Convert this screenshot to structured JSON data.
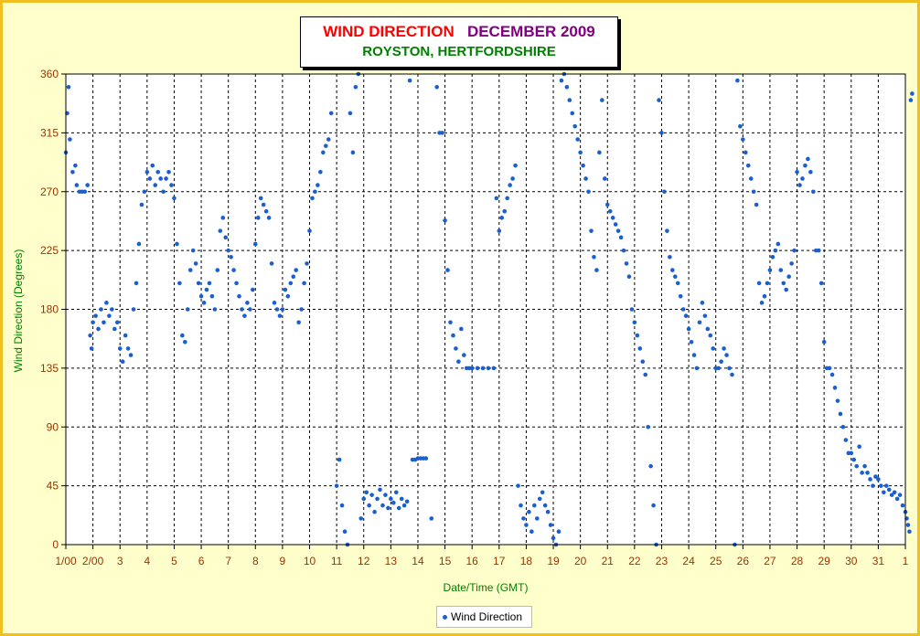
{
  "title": {
    "part1": "WIND DIRECTION",
    "part2": "DECEMBER 2009",
    "subtitle": "ROYSTON, HERTFORDSHIRE"
  },
  "colors": {
    "part1": "#ff0000",
    "part2": "#800080",
    "subtitle": "#008000",
    "series": "#1a5fd0",
    "axis_text": "#993300",
    "ylabel": "#008000"
  },
  "chart_data": {
    "type": "scatter",
    "xlabel": "Date/Time (GMT)",
    "ylabel": "Wind Direction (Degrees)",
    "ylim": [
      0,
      360
    ],
    "xlim": [
      0,
      31
    ],
    "yticks": [
      0,
      45,
      90,
      135,
      180,
      225,
      270,
      315,
      360
    ],
    "xtick_labels": [
      "1/00",
      "2/00",
      "3",
      "4",
      "5",
      "6",
      "7",
      "8",
      "9",
      "10",
      "11",
      "12",
      "13",
      "14",
      "15",
      "16",
      "17",
      "18",
      "19",
      "20",
      "21",
      "22",
      "23",
      "24",
      "25",
      "26",
      "27",
      "28",
      "29",
      "30",
      "31",
      "1"
    ],
    "grid": true,
    "legend": "bottom",
    "series": [
      {
        "name": "Wind Direction",
        "points": [
          [
            0.0,
            300
          ],
          [
            0.05,
            330
          ],
          [
            0.1,
            350
          ],
          [
            0.15,
            310
          ],
          [
            0.25,
            285
          ],
          [
            0.35,
            290
          ],
          [
            0.4,
            275
          ],
          [
            0.5,
            270
          ],
          [
            0.6,
            270
          ],
          [
            0.7,
            270
          ],
          [
            0.8,
            275
          ],
          [
            0.9,
            160
          ],
          [
            0.95,
            150
          ],
          [
            1.0,
            170
          ],
          [
            1.1,
            175
          ],
          [
            1.2,
            165
          ],
          [
            1.3,
            180
          ],
          [
            1.4,
            170
          ],
          [
            1.5,
            185
          ],
          [
            1.6,
            175
          ],
          [
            1.7,
            180
          ],
          [
            1.8,
            165
          ],
          [
            1.9,
            170
          ],
          [
            2.0,
            150
          ],
          [
            2.1,
            140
          ],
          [
            2.2,
            160
          ],
          [
            2.3,
            150
          ],
          [
            2.4,
            145
          ],
          [
            2.5,
            180
          ],
          [
            2.6,
            200
          ],
          [
            2.7,
            230
          ],
          [
            2.8,
            260
          ],
          [
            2.9,
            270
          ],
          [
            3.0,
            285
          ],
          [
            3.1,
            280
          ],
          [
            3.2,
            290
          ],
          [
            3.3,
            275
          ],
          [
            3.4,
            285
          ],
          [
            3.5,
            280
          ],
          [
            3.6,
            270
          ],
          [
            3.7,
            280
          ],
          [
            3.8,
            285
          ],
          [
            3.9,
            275
          ],
          [
            4.0,
            265
          ],
          [
            4.1,
            230
          ],
          [
            4.2,
            200
          ],
          [
            4.3,
            160
          ],
          [
            4.4,
            155
          ],
          [
            4.5,
            180
          ],
          [
            4.6,
            210
          ],
          [
            4.7,
            225
          ],
          [
            4.8,
            215
          ],
          [
            4.9,
            200
          ],
          [
            5.0,
            190
          ],
          [
            5.1,
            185
          ],
          [
            5.2,
            195
          ],
          [
            5.3,
            200
          ],
          [
            5.4,
            190
          ],
          [
            5.5,
            180
          ],
          [
            5.6,
            210
          ],
          [
            5.7,
            240
          ],
          [
            5.8,
            250
          ],
          [
            5.9,
            235
          ],
          [
            6.0,
            225
          ],
          [
            6.1,
            220
          ],
          [
            6.2,
            210
          ],
          [
            6.3,
            200
          ],
          [
            6.4,
            190
          ],
          [
            6.5,
            180
          ],
          [
            6.6,
            175
          ],
          [
            6.7,
            185
          ],
          [
            6.8,
            180
          ],
          [
            6.9,
            195
          ],
          [
            7.0,
            230
          ],
          [
            7.1,
            250
          ],
          [
            7.2,
            265
          ],
          [
            7.3,
            260
          ],
          [
            7.4,
            255
          ],
          [
            7.5,
            250
          ],
          [
            7.6,
            215
          ],
          [
            7.7,
            185
          ],
          [
            7.8,
            180
          ],
          [
            7.9,
            175
          ],
          [
            8.0,
            180
          ],
          [
            8.1,
            195
          ],
          [
            8.2,
            190
          ],
          [
            8.3,
            200
          ],
          [
            8.4,
            205
          ],
          [
            8.5,
            210
          ],
          [
            8.6,
            170
          ],
          [
            8.7,
            180
          ],
          [
            8.8,
            200
          ],
          [
            8.9,
            215
          ],
          [
            9.0,
            240
          ],
          [
            9.1,
            265
          ],
          [
            9.2,
            270
          ],
          [
            9.3,
            275
          ],
          [
            9.4,
            285
          ],
          [
            9.5,
            300
          ],
          [
            9.6,
            305
          ],
          [
            9.7,
            310
          ],
          [
            9.8,
            330
          ],
          [
            10.0,
            45
          ],
          [
            10.1,
            65
          ],
          [
            10.2,
            30
          ],
          [
            10.3,
            10
          ],
          [
            10.4,
            0
          ],
          [
            10.5,
            330
          ],
          [
            10.6,
            300
          ],
          [
            10.7,
            350
          ],
          [
            10.8,
            360
          ],
          [
            10.9,
            20
          ],
          [
            11.0,
            35
          ],
          [
            11.1,
            40
          ],
          [
            11.2,
            30
          ],
          [
            11.3,
            38
          ],
          [
            11.4,
            25
          ],
          [
            11.5,
            35
          ],
          [
            11.6,
            42
          ],
          [
            11.7,
            30
          ],
          [
            11.8,
            38
          ],
          [
            11.9,
            28
          ],
          [
            12.0,
            35
          ],
          [
            12.1,
            32
          ],
          [
            12.2,
            40
          ],
          [
            12.3,
            28
          ],
          [
            12.4,
            35
          ],
          [
            12.5,
            30
          ],
          [
            12.6,
            33
          ],
          [
            12.7,
            355
          ],
          [
            12.8,
            65
          ],
          [
            12.9,
            65
          ],
          [
            13.0,
            66
          ],
          [
            13.1,
            66
          ],
          [
            13.2,
            66
          ],
          [
            13.3,
            66
          ],
          [
            13.5,
            20
          ],
          [
            13.7,
            350
          ],
          [
            13.8,
            315
          ],
          [
            13.9,
            315
          ],
          [
            14.0,
            248
          ],
          [
            14.1,
            210
          ],
          [
            14.2,
            170
          ],
          [
            14.3,
            160
          ],
          [
            14.4,
            150
          ],
          [
            14.5,
            140
          ],
          [
            14.6,
            165
          ],
          [
            14.7,
            145
          ],
          [
            14.8,
            135
          ],
          [
            14.9,
            135
          ],
          [
            15.0,
            135
          ],
          [
            15.2,
            135
          ],
          [
            15.4,
            135
          ],
          [
            15.6,
            135
          ],
          [
            15.8,
            135
          ],
          [
            15.9,
            265
          ],
          [
            16.0,
            240
          ],
          [
            16.1,
            250
          ],
          [
            16.2,
            255
          ],
          [
            16.3,
            265
          ],
          [
            16.4,
            275
          ],
          [
            16.5,
            280
          ],
          [
            16.6,
            290
          ],
          [
            16.7,
            45
          ],
          [
            16.8,
            30
          ],
          [
            16.9,
            20
          ],
          [
            17.0,
            15
          ],
          [
            17.1,
            25
          ],
          [
            17.2,
            10
          ],
          [
            17.3,
            30
          ],
          [
            17.4,
            20
          ],
          [
            17.5,
            35
          ],
          [
            17.6,
            40
          ],
          [
            17.7,
            30
          ],
          [
            17.8,
            25
          ],
          [
            17.9,
            15
          ],
          [
            18.0,
            5
          ],
          [
            18.1,
            0
          ],
          [
            18.2,
            10
          ],
          [
            18.3,
            355
          ],
          [
            18.4,
            360
          ],
          [
            18.5,
            350
          ],
          [
            18.6,
            340
          ],
          [
            18.7,
            330
          ],
          [
            18.8,
            320
          ],
          [
            18.9,
            310
          ],
          [
            19.0,
            300
          ],
          [
            19.1,
            290
          ],
          [
            19.2,
            280
          ],
          [
            19.3,
            270
          ],
          [
            19.4,
            240
          ],
          [
            19.5,
            220
          ],
          [
            19.6,
            210
          ],
          [
            19.7,
            300
          ],
          [
            19.8,
            340
          ],
          [
            19.9,
            280
          ],
          [
            20.0,
            260
          ],
          [
            20.1,
            255
          ],
          [
            20.2,
            250
          ],
          [
            20.3,
            245
          ],
          [
            20.4,
            240
          ],
          [
            20.5,
            235
          ],
          [
            20.6,
            225
          ],
          [
            20.7,
            215
          ],
          [
            20.8,
            205
          ],
          [
            20.9,
            180
          ],
          [
            21.0,
            170
          ],
          [
            21.1,
            160
          ],
          [
            21.2,
            150
          ],
          [
            21.3,
            140
          ],
          [
            21.4,
            130
          ],
          [
            21.5,
            90
          ],
          [
            21.6,
            60
          ],
          [
            21.7,
            30
          ],
          [
            21.8,
            0
          ],
          [
            21.9,
            340
          ],
          [
            22.0,
            315
          ],
          [
            22.1,
            270
          ],
          [
            22.2,
            240
          ],
          [
            22.3,
            220
          ],
          [
            22.4,
            210
          ],
          [
            22.5,
            205
          ],
          [
            22.6,
            200
          ],
          [
            22.7,
            190
          ],
          [
            22.8,
            180
          ],
          [
            22.9,
            175
          ],
          [
            23.0,
            165
          ],
          [
            23.1,
            155
          ],
          [
            23.2,
            145
          ],
          [
            23.3,
            135
          ],
          [
            23.4,
            170
          ],
          [
            23.5,
            185
          ],
          [
            23.6,
            175
          ],
          [
            23.7,
            165
          ],
          [
            23.8,
            160
          ],
          [
            23.9,
            150
          ],
          [
            24.0,
            135
          ],
          [
            24.1,
            135
          ],
          [
            24.2,
            140
          ],
          [
            24.3,
            150
          ],
          [
            24.4,
            145
          ],
          [
            24.5,
            135
          ],
          [
            24.6,
            130
          ],
          [
            24.7,
            0
          ],
          [
            24.8,
            355
          ],
          [
            24.9,
            320
          ],
          [
            25.0,
            310
          ],
          [
            25.1,
            300
          ],
          [
            25.2,
            290
          ],
          [
            25.3,
            280
          ],
          [
            25.4,
            270
          ],
          [
            25.5,
            260
          ],
          [
            25.6,
            200
          ],
          [
            25.7,
            185
          ],
          [
            25.8,
            190
          ],
          [
            25.9,
            200
          ],
          [
            26.0,
            210
          ],
          [
            26.1,
            220
          ],
          [
            26.2,
            225
          ],
          [
            26.3,
            230
          ],
          [
            26.4,
            210
          ],
          [
            26.5,
            200
          ],
          [
            26.6,
            195
          ],
          [
            26.7,
            205
          ],
          [
            26.8,
            215
          ],
          [
            26.9,
            225
          ],
          [
            27.0,
            285
          ],
          [
            27.1,
            275
          ],
          [
            27.2,
            280
          ],
          [
            27.3,
            290
          ],
          [
            27.4,
            295
          ],
          [
            27.5,
            285
          ],
          [
            27.6,
            270
          ],
          [
            27.7,
            225
          ],
          [
            27.8,
            225
          ],
          [
            27.9,
            200
          ],
          [
            28.0,
            155
          ],
          [
            28.1,
            135
          ],
          [
            28.2,
            135
          ],
          [
            28.3,
            130
          ],
          [
            28.4,
            120
          ],
          [
            28.5,
            110
          ],
          [
            28.6,
            100
          ],
          [
            28.7,
            90
          ],
          [
            28.8,
            80
          ],
          [
            28.9,
            70
          ],
          [
            29.0,
            70
          ],
          [
            29.1,
            65
          ],
          [
            29.2,
            60
          ],
          [
            29.3,
            75
          ],
          [
            29.4,
            55
          ],
          [
            29.5,
            60
          ],
          [
            29.6,
            55
          ],
          [
            29.7,
            50
          ],
          [
            29.8,
            45
          ],
          [
            29.9,
            52
          ],
          [
            30.0,
            50
          ],
          [
            30.1,
            45
          ],
          [
            30.2,
            40
          ],
          [
            30.3,
            45
          ],
          [
            30.4,
            42
          ],
          [
            30.5,
            38
          ],
          [
            30.6,
            40
          ],
          [
            30.7,
            35
          ],
          [
            30.8,
            38
          ],
          [
            30.9,
            30
          ],
          [
            31.0,
            25
          ],
          [
            31.05,
            20
          ],
          [
            31.1,
            15
          ],
          [
            31.15,
            10
          ],
          [
            31.2,
            340
          ],
          [
            31.25,
            345
          ]
        ]
      }
    ]
  }
}
